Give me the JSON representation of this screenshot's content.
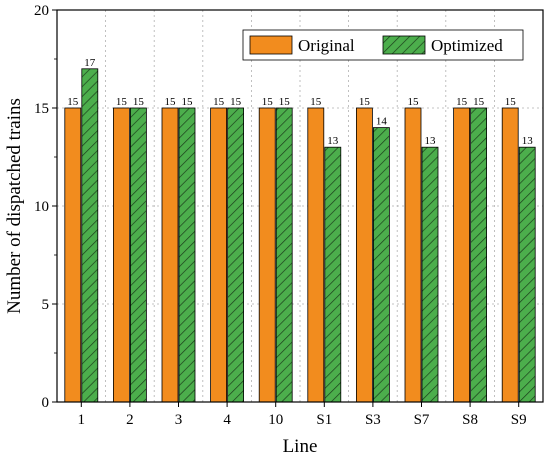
{
  "chart_data": {
    "type": "bar",
    "xlabel": "Line",
    "ylabel": "Number of dispatched trains",
    "ylim": [
      0,
      20
    ],
    "yticks": [
      0,
      5,
      10,
      15,
      20
    ],
    "grid": true,
    "legend_position": "top-right",
    "categories": [
      "1",
      "2",
      "3",
      "4",
      "10",
      "S1",
      "S3",
      "S7",
      "S8",
      "S9"
    ],
    "series": [
      {
        "name": "Original",
        "color": "#f28c1e",
        "pattern": "solid",
        "values": [
          15,
          15,
          15,
          15,
          15,
          15,
          15,
          15,
          15,
          15
        ]
      },
      {
        "name": "Optimized",
        "color": "#4cae4c",
        "pattern": "diagonal-hatch",
        "values": [
          17,
          15,
          15,
          15,
          15,
          13,
          14,
          13,
          15,
          13
        ]
      }
    ]
  }
}
